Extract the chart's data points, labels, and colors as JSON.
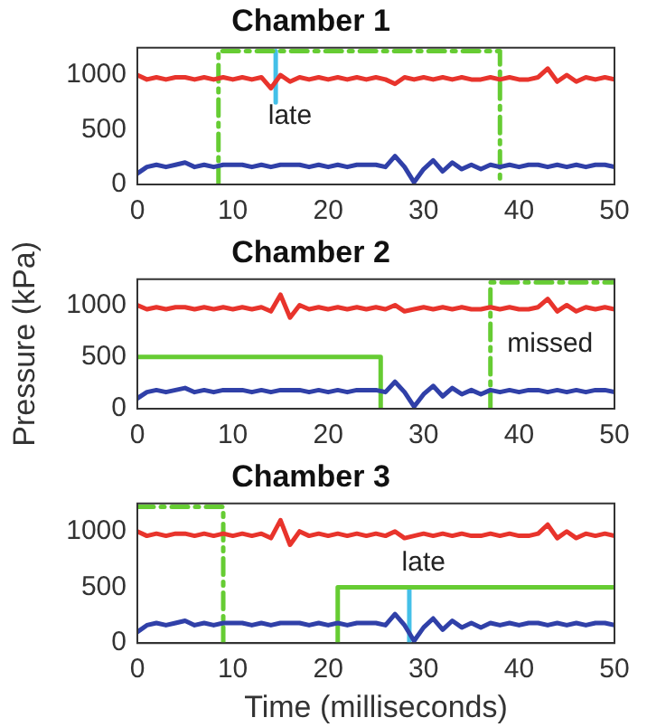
{
  "chart_data": [
    {
      "type": "line",
      "title": "Chamber 1",
      "x": [
        0,
        1,
        2,
        3,
        4,
        5,
        6,
        7,
        8,
        9,
        10,
        11,
        12,
        13,
        14,
        15,
        16,
        17,
        18,
        19,
        20,
        21,
        22,
        23,
        24,
        25,
        26,
        27,
        28,
        29,
        30,
        31,
        32,
        33,
        34,
        35,
        36,
        37,
        38,
        39,
        40,
        41,
        42,
        43,
        44,
        45,
        46,
        47,
        48,
        49,
        50
      ],
      "xlim": [
        0,
        50
      ],
      "xticks": [
        0,
        10,
        20,
        30,
        40,
        50
      ],
      "ylim": [
        0,
        1250
      ],
      "yticks": [
        0,
        500,
        1000
      ],
      "grid": false,
      "legend": false,
      "marker": "none",
      "annotations": [
        "late"
      ],
      "series": [
        {
          "color": "#e8342c",
          "values": [
            1000,
            960,
            980,
            960,
            980,
            980,
            960,
            980,
            960,
            980,
            960,
            980,
            960,
            980,
            880,
            1000,
            940,
            980,
            960,
            980,
            960,
            980,
            960,
            980,
            960,
            980,
            960,
            920,
            980,
            960,
            980,
            960,
            980,
            960,
            980,
            960,
            960,
            980,
            960,
            980,
            960,
            960,
            980,
            1060,
            940,
            1000,
            940,
            980,
            960,
            980,
            960
          ]
        },
        {
          "color": "#3040a8",
          "values": [
            100,
            160,
            180,
            160,
            180,
            200,
            160,
            180,
            160,
            180,
            180,
            180,
            160,
            180,
            160,
            180,
            180,
            180,
            160,
            180,
            160,
            180,
            160,
            180,
            180,
            180,
            160,
            260,
            160,
            20,
            140,
            220,
            120,
            200,
            140,
            180,
            140,
            180,
            160,
            180,
            160,
            180,
            180,
            160,
            180,
            160,
            180,
            160,
            180,
            180,
            160
          ]
        },
        {
          "color": "#66cc33",
          "line_style": "dashed",
          "x": [
            8.5,
            8.5,
            38,
            38
          ],
          "values": [
            0,
            1220,
            1220,
            0
          ]
        },
        {
          "color": "#44c0e8",
          "x": [
            14.5,
            14.5
          ],
          "values": [
            1220,
            750
          ]
        }
      ]
    },
    {
      "type": "line",
      "title": "Chamber 2",
      "ylabel": "Pressure (kPa)",
      "x": [
        0,
        1,
        2,
        3,
        4,
        5,
        6,
        7,
        8,
        9,
        10,
        11,
        12,
        13,
        14,
        15,
        16,
        17,
        18,
        19,
        20,
        21,
        22,
        23,
        24,
        25,
        26,
        27,
        28,
        29,
        30,
        31,
        32,
        33,
        34,
        35,
        36,
        37,
        38,
        39,
        40,
        41,
        42,
        43,
        44,
        45,
        46,
        47,
        48,
        49,
        50
      ],
      "xlim": [
        0,
        50
      ],
      "xticks": [
        0,
        10,
        20,
        30,
        40,
        50
      ],
      "ylim": [
        0,
        1250
      ],
      "yticks": [
        0,
        500,
        1000
      ],
      "grid": false,
      "legend": false,
      "marker": "none",
      "annotations": [
        "missed"
      ],
      "series": [
        {
          "color": "#e8342c",
          "values": [
            1000,
            960,
            980,
            960,
            980,
            980,
            960,
            980,
            960,
            980,
            960,
            980,
            960,
            980,
            940,
            1100,
            880,
            1000,
            960,
            980,
            960,
            980,
            960,
            980,
            960,
            980,
            960,
            1000,
            940,
            960,
            980,
            960,
            980,
            960,
            980,
            960,
            960,
            980,
            960,
            980,
            960,
            960,
            980,
            1060,
            940,
            1000,
            940,
            980,
            960,
            980,
            960
          ]
        },
        {
          "color": "#3040a8",
          "values": [
            100,
            160,
            180,
            160,
            180,
            200,
            160,
            180,
            160,
            180,
            180,
            180,
            160,
            180,
            160,
            180,
            180,
            180,
            160,
            180,
            160,
            180,
            160,
            180,
            180,
            180,
            160,
            260,
            160,
            20,
            140,
            220,
            120,
            200,
            140,
            180,
            140,
            180,
            160,
            180,
            160,
            180,
            180,
            160,
            180,
            160,
            180,
            160,
            180,
            180,
            160
          ]
        },
        {
          "color": "#66cc33",
          "x": [
            0,
            25.5,
            25.5
          ],
          "values": [
            500,
            500,
            0
          ]
        },
        {
          "color": "#66cc33",
          "line_style": "dashed",
          "x": [
            37,
            37,
            50
          ],
          "values": [
            0,
            1220,
            1220
          ]
        }
      ]
    },
    {
      "type": "line",
      "title": "Chamber 3",
      "xlabel": "Time (milliseconds)",
      "x": [
        0,
        1,
        2,
        3,
        4,
        5,
        6,
        7,
        8,
        9,
        10,
        11,
        12,
        13,
        14,
        15,
        16,
        17,
        18,
        19,
        20,
        21,
        22,
        23,
        24,
        25,
        26,
        27,
        28,
        29,
        30,
        31,
        32,
        33,
        34,
        35,
        36,
        37,
        38,
        39,
        40,
        41,
        42,
        43,
        44,
        45,
        46,
        47,
        48,
        49,
        50
      ],
      "xlim": [
        0,
        50
      ],
      "xticks": [
        0,
        10,
        20,
        30,
        40,
        50
      ],
      "ylim": [
        0,
        1250
      ],
      "yticks": [
        0,
        500,
        1000
      ],
      "grid": false,
      "legend": false,
      "marker": "none",
      "annotations": [
        "late"
      ],
      "series": [
        {
          "color": "#e8342c",
          "values": [
            1000,
            960,
            980,
            960,
            980,
            980,
            960,
            980,
            960,
            980,
            960,
            980,
            960,
            980,
            940,
            1100,
            880,
            1000,
            960,
            980,
            960,
            980,
            960,
            980,
            960,
            980,
            960,
            1000,
            940,
            960,
            980,
            960,
            980,
            960,
            980,
            960,
            960,
            980,
            960,
            980,
            960,
            960,
            980,
            1060,
            940,
            1000,
            940,
            980,
            960,
            980,
            960
          ]
        },
        {
          "color": "#3040a8",
          "values": [
            100,
            160,
            180,
            160,
            180,
            200,
            160,
            180,
            160,
            180,
            180,
            180,
            160,
            180,
            160,
            180,
            180,
            180,
            160,
            180,
            160,
            180,
            160,
            180,
            180,
            180,
            160,
            260,
            160,
            20,
            140,
            220,
            120,
            200,
            140,
            180,
            140,
            180,
            160,
            180,
            160,
            180,
            180,
            160,
            180,
            160,
            180,
            160,
            180,
            180,
            160
          ]
        },
        {
          "color": "#66cc33",
          "line_style": "dashed",
          "x": [
            0,
            9,
            9
          ],
          "values": [
            1220,
            1220,
            0
          ]
        },
        {
          "color": "#66cc33",
          "x": [
            21,
            21,
            50
          ],
          "values": [
            0,
            500,
            500
          ]
        },
        {
          "color": "#44c0e8",
          "x": [
            28.5,
            28.5
          ],
          "values": [
            500,
            0
          ]
        }
      ]
    }
  ]
}
